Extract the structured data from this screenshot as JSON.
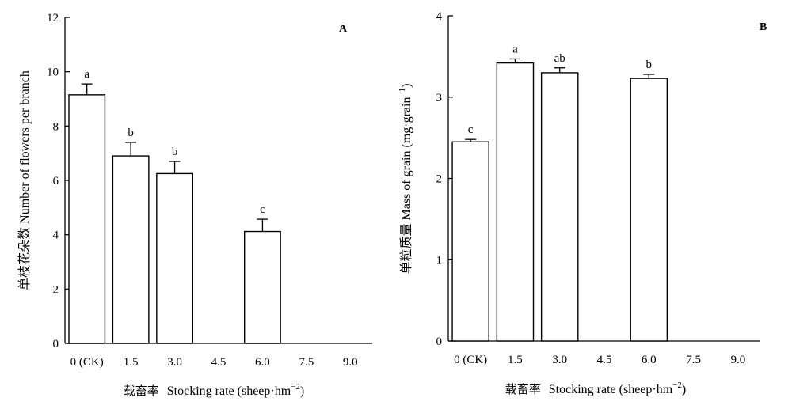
{
  "chart_data": [
    {
      "type": "bar",
      "panel_label": "A",
      "categories": [
        "0 (CK)",
        "1.5",
        "3.0",
        "4.5",
        "6.0",
        "7.5",
        "9.0"
      ],
      "values": [
        9.15,
        6.9,
        6.25,
        null,
        4.12,
        null,
        null
      ],
      "errors": [
        0.4,
        0.5,
        0.45,
        null,
        0.45,
        null,
        null
      ],
      "significance": [
        "a",
        "b",
        "b",
        "",
        "c",
        "",
        ""
      ],
      "ylabel": "单枝花朵数 Number of flowers per branch",
      "xlabel_cn": "载畜率",
      "xlabel_en": "Stocking rate (sheep·hm",
      "xlabel_sup": "−2",
      "xlabel_close": ")",
      "ylim": [
        0,
        12
      ],
      "yticks": [
        0,
        2,
        4,
        6,
        8,
        10,
        12
      ],
      "bar_fill": "#ffffff",
      "bar_stroke": "#000000"
    },
    {
      "type": "bar",
      "panel_label": "B",
      "categories": [
        "0 (CK)",
        "1.5",
        "3.0",
        "4.5",
        "6.0",
        "7.5",
        "9.0"
      ],
      "values": [
        2.45,
        3.42,
        3.3,
        null,
        3.23,
        null,
        null
      ],
      "errors": [
        0.03,
        0.05,
        0.06,
        null,
        0.05,
        null,
        null
      ],
      "significance": [
        "c",
        "a",
        "ab",
        "",
        "b",
        "",
        ""
      ],
      "ylabel_main": "单粒质量 Mass of grain (mg·grain",
      "ylabel_sup": "−1",
      "ylabel_close": ")",
      "xlabel_cn": "载畜率",
      "xlabel_en": "Stocking rate (sheep·hm",
      "xlabel_sup": "−2",
      "xlabel_close": ")",
      "ylim": [
        0,
        4
      ],
      "yticks": [
        0,
        1,
        2,
        3,
        4
      ],
      "bar_fill": "#ffffff",
      "bar_stroke": "#000000"
    }
  ]
}
